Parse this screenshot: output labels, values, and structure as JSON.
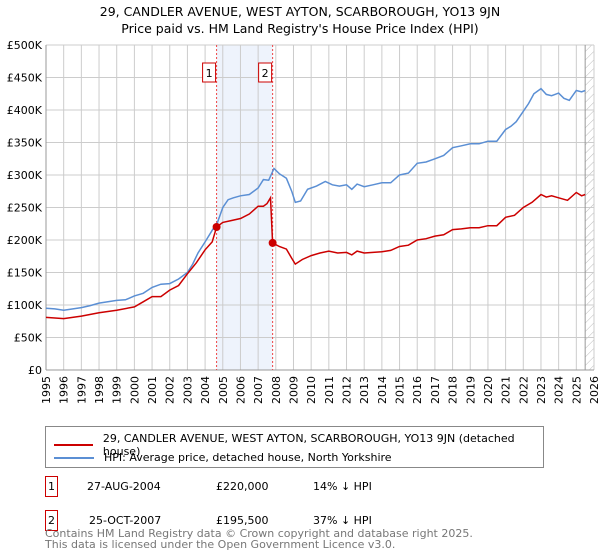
{
  "chart_data": {
    "type": "line",
    "title": "29, CANDLER AVENUE, WEST AYTON, SCARBOROUGH, YO13 9JN",
    "subtitle": "Price paid vs. HM Land Registry's House Price Index (HPI)",
    "xlim": [
      1995,
      2026
    ],
    "ylim": [
      0,
      500000
    ],
    "grid": true,
    "x_ticks": [
      "1995",
      "1996",
      "1997",
      "1998",
      "1999",
      "2000",
      "2001",
      "2002",
      "2003",
      "2004",
      "2005",
      "2006",
      "2007",
      "2008",
      "2009",
      "2010",
      "2011",
      "2012",
      "2013",
      "2014",
      "2015",
      "2016",
      "2017",
      "2018",
      "2019",
      "2020",
      "2021",
      "2022",
      "2023",
      "2024",
      "2025",
      "2026"
    ],
    "y_ticks": [
      {
        "v": 0,
        "label": "£0"
      },
      {
        "v": 50000,
        "label": "£50K"
      },
      {
        "v": 100000,
        "label": "£100K"
      },
      {
        "v": 150000,
        "label": "£150K"
      },
      {
        "v": 200000,
        "label": "£200K"
      },
      {
        "v": 250000,
        "label": "£250K"
      },
      {
        "v": 300000,
        "label": "£300K"
      },
      {
        "v": 350000,
        "label": "£350K"
      },
      {
        "v": 400000,
        "label": "£400K"
      },
      {
        "v": 450000,
        "label": "£450K"
      },
      {
        "v": 500000,
        "label": "£500K"
      }
    ],
    "shaded_range": [
      2004.65,
      2007.82
    ],
    "hatched_from": 2025.5,
    "series": [
      {
        "name": "29, CANDLER AVENUE, WEST AYTON, SCARBOROUGH, YO13 9JN (detached house)",
        "color": "#cc0000",
        "x": [
          1995,
          1996,
          1997,
          1998,
          1999,
          2000,
          2000.5,
          2001,
          2001.5,
          2002,
          2002.5,
          2003,
          2003.5,
          2004,
          2004.4,
          2004.65,
          2005,
          2005.5,
          2006,
          2006.5,
          2007,
          2007.3,
          2007.5,
          2007.7,
          2007.82,
          2008.2,
          2008.6,
          2008.9,
          2009.1,
          2009.5,
          2010,
          2010.5,
          2011,
          2011.5,
          2012,
          2012.3,
          2012.6,
          2013,
          2013.5,
          2014,
          2014.5,
          2015,
          2015.5,
          2016,
          2016.5,
          2017,
          2017.5,
          2018,
          2018.5,
          2019,
          2019.5,
          2020,
          2020.5,
          2021,
          2021.5,
          2022,
          2022.5,
          2023,
          2023.3,
          2023.6,
          2024,
          2024.5,
          2025,
          2025.3,
          2025.5
        ],
        "y": [
          81000,
          79000,
          83000,
          88000,
          92000,
          97000,
          105000,
          113000,
          113000,
          123000,
          130000,
          148000,
          165000,
          185000,
          197000,
          220000,
          227000,
          230000,
          233000,
          240000,
          252000,
          252000,
          256000,
          265000,
          195500,
          190000,
          186000,
          172000,
          163000,
          170000,
          176000,
          180000,
          183000,
          180000,
          181000,
          177000,
          183000,
          180000,
          181000,
          182000,
          184000,
          190000,
          192000,
          200000,
          202000,
          206000,
          208000,
          216000,
          217000,
          219000,
          219000,
          222000,
          222000,
          235000,
          238000,
          250000,
          258000,
          270000,
          266000,
          268000,
          265000,
          261000,
          273000,
          268000,
          270000
        ]
      },
      {
        "name": "HPI: Average price, detached house, North Yorkshire",
        "color": "#5b8fd4",
        "x": [
          1995,
          1995.5,
          1996,
          1997,
          1997.5,
          1998,
          1999,
          1999.5,
          2000,
          2000.5,
          2001,
          2001.5,
          2002,
          2002.5,
          2003,
          2003.3,
          2003.6,
          2004,
          2004.4,
          2004.7,
          2005,
          2005.3,
          2005.6,
          2006,
          2006.5,
          2007,
          2007.3,
          2007.6,
          2007.9,
          2008.2,
          2008.6,
          2008.9,
          2009.1,
          2009.4,
          2009.8,
          2010.3,
          2010.8,
          2011.2,
          2011.6,
          2012,
          2012.3,
          2012.6,
          2013,
          2013.5,
          2014,
          2014.5,
          2015,
          2015.5,
          2016,
          2016.5,
          2017,
          2017.5,
          2018,
          2018.5,
          2019,
          2019.5,
          2020,
          2020.5,
          2021,
          2021.3,
          2021.6,
          2022,
          2022.3,
          2022.6,
          2023,
          2023.3,
          2023.6,
          2024,
          2024.3,
          2024.6,
          2025,
          2025.3,
          2025.5
        ],
        "y": [
          95000,
          94000,
          92000,
          96000,
          99000,
          103000,
          107000,
          108000,
          114000,
          118000,
          127000,
          132000,
          133000,
          140000,
          150000,
          163000,
          180000,
          197000,
          215000,
          227000,
          250000,
          262000,
          265000,
          268000,
          270000,
          280000,
          293000,
          292000,
          310000,
          302000,
          295000,
          275000,
          258000,
          260000,
          278000,
          283000,
          290000,
          285000,
          283000,
          285000,
          278000,
          286000,
          282000,
          285000,
          288000,
          288000,
          300000,
          303000,
          318000,
          320000,
          325000,
          330000,
          342000,
          345000,
          348000,
          348000,
          352000,
          352000,
          370000,
          375000,
          382000,
          398000,
          410000,
          425000,
          433000,
          424000,
          422000,
          426000,
          418000,
          415000,
          430000,
          428000,
          430000
        ]
      }
    ],
    "annotations": [
      {
        "label": "1",
        "x": 2004.65,
        "y": 220000
      },
      {
        "label": "2",
        "x": 2007.82,
        "y": 195500
      }
    ]
  },
  "transactions": [
    {
      "num": "1",
      "date": "27-AUG-2004",
      "price": "£220,000",
      "hpi": "14% ↓ HPI"
    },
    {
      "num": "2",
      "date": "25-OCT-2007",
      "price": "£195,500",
      "hpi": "37% ↓ HPI"
    }
  ],
  "footer": {
    "line1": "Contains HM Land Registry data © Crown copyright and database right 2025.",
    "line2": "This data is licensed under the Open Government Licence v3.0."
  }
}
